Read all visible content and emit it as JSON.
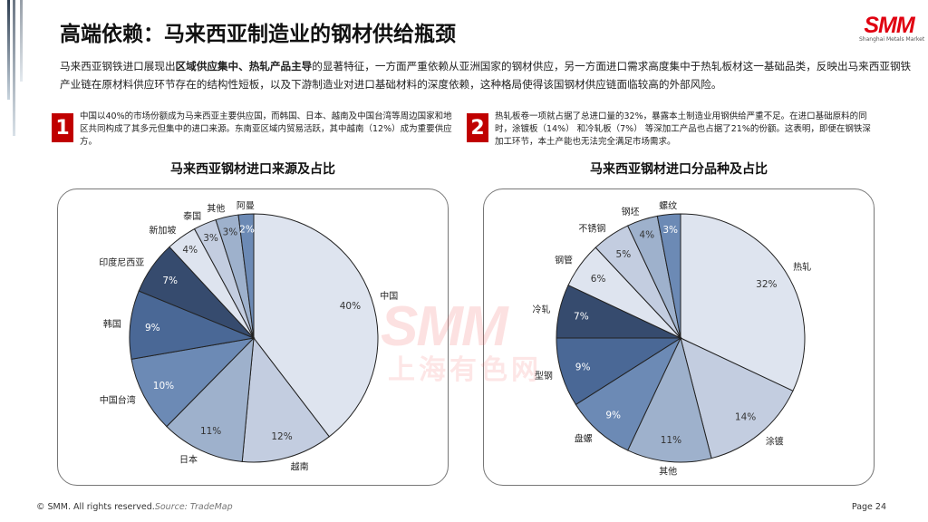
{
  "header": {
    "title": "高端依赖：马来西亚制造业的钢材供给瓶颈",
    "logo_text": "SMM",
    "logo_sub": "Shanghai Metals Market"
  },
  "intro": {
    "p1": "马来西亚钢铁进口展现出",
    "b1": "区域供应集中、热轧产品主导",
    "p2": "的显著特征，一方面严重依赖从亚洲国家的钢材供应，另一方面进口需求高度集中于热轧板材这一基础品类，反映出马来西亚钢铁产业链在原材料供应环节存在的结构性短板，以及下游制造业对进口基础材料的深度依赖，这种格局使得该国钢材供应链面临较高的外部风险。"
  },
  "notes": [
    {
      "num": "1",
      "text": "中国以40%的市场份额成为马来西亚主要供应国，而韩国、日本、越南及中国台湾等周边国家和地区共同构成了其多元但集中的进口来源。东南亚区域内贸易活跃，其中越南（12%）成为重要供应方。"
    },
    {
      "num": "2",
      "text": "热轧板卷一项就占据了总进口量的32%，暴露本土制造业用钢供给严重不足。在进口基础原料的同时，涂镀板（14%） 和冷轧板（7%） 等深加工产品也占据了21%的份额。这表明，即便在钢铁深加工环节，本土产能也无法完全满足市场需求。"
    }
  ],
  "watermark": {
    "logo": "SMM",
    "cn": "上海有色网"
  },
  "colors": {
    "accent": "#c00000",
    "slices": [
      "#dee4ef",
      "#c3cde0",
      "#9eb1cc",
      "#6c8ab5",
      "#4a6896",
      "#364b6e"
    ]
  },
  "chart_data": [
    {
      "type": "pie",
      "title": "马来西亚钢材进口来源及占比",
      "categories": [
        "中国",
        "越南",
        "日本",
        "中国台湾",
        "韩国",
        "印度尼西亚",
        "新加坡",
        "泰国",
        "其他",
        "阿曼"
      ],
      "values": [
        40,
        12,
        11,
        10,
        9,
        7,
        4,
        3,
        3,
        2
      ],
      "labels": [
        "40%",
        "12%",
        "11%",
        "10%",
        "9%",
        "7%",
        "4%",
        "3%",
        "3%",
        "2%"
      ]
    },
    {
      "type": "pie",
      "title": "马来西亚钢材进口分品种及占比",
      "categories": [
        "热轧",
        "涂镀",
        "其他",
        "盘螺",
        "型钢",
        "冷轧",
        "钢管",
        "不锈钢",
        "钢坯",
        "螺纹"
      ],
      "values": [
        32,
        14,
        11,
        9,
        9,
        7,
        6,
        5,
        4,
        3
      ],
      "labels": [
        "32%",
        "14%",
        "11%",
        "9%",
        "9%",
        "7%",
        "6%",
        "5%",
        "4%",
        "3%"
      ]
    }
  ],
  "footer": {
    "copyright": "© SMM. All rights reserved.",
    "source": "Source:  TradeMap",
    "page": "Page 24"
  }
}
